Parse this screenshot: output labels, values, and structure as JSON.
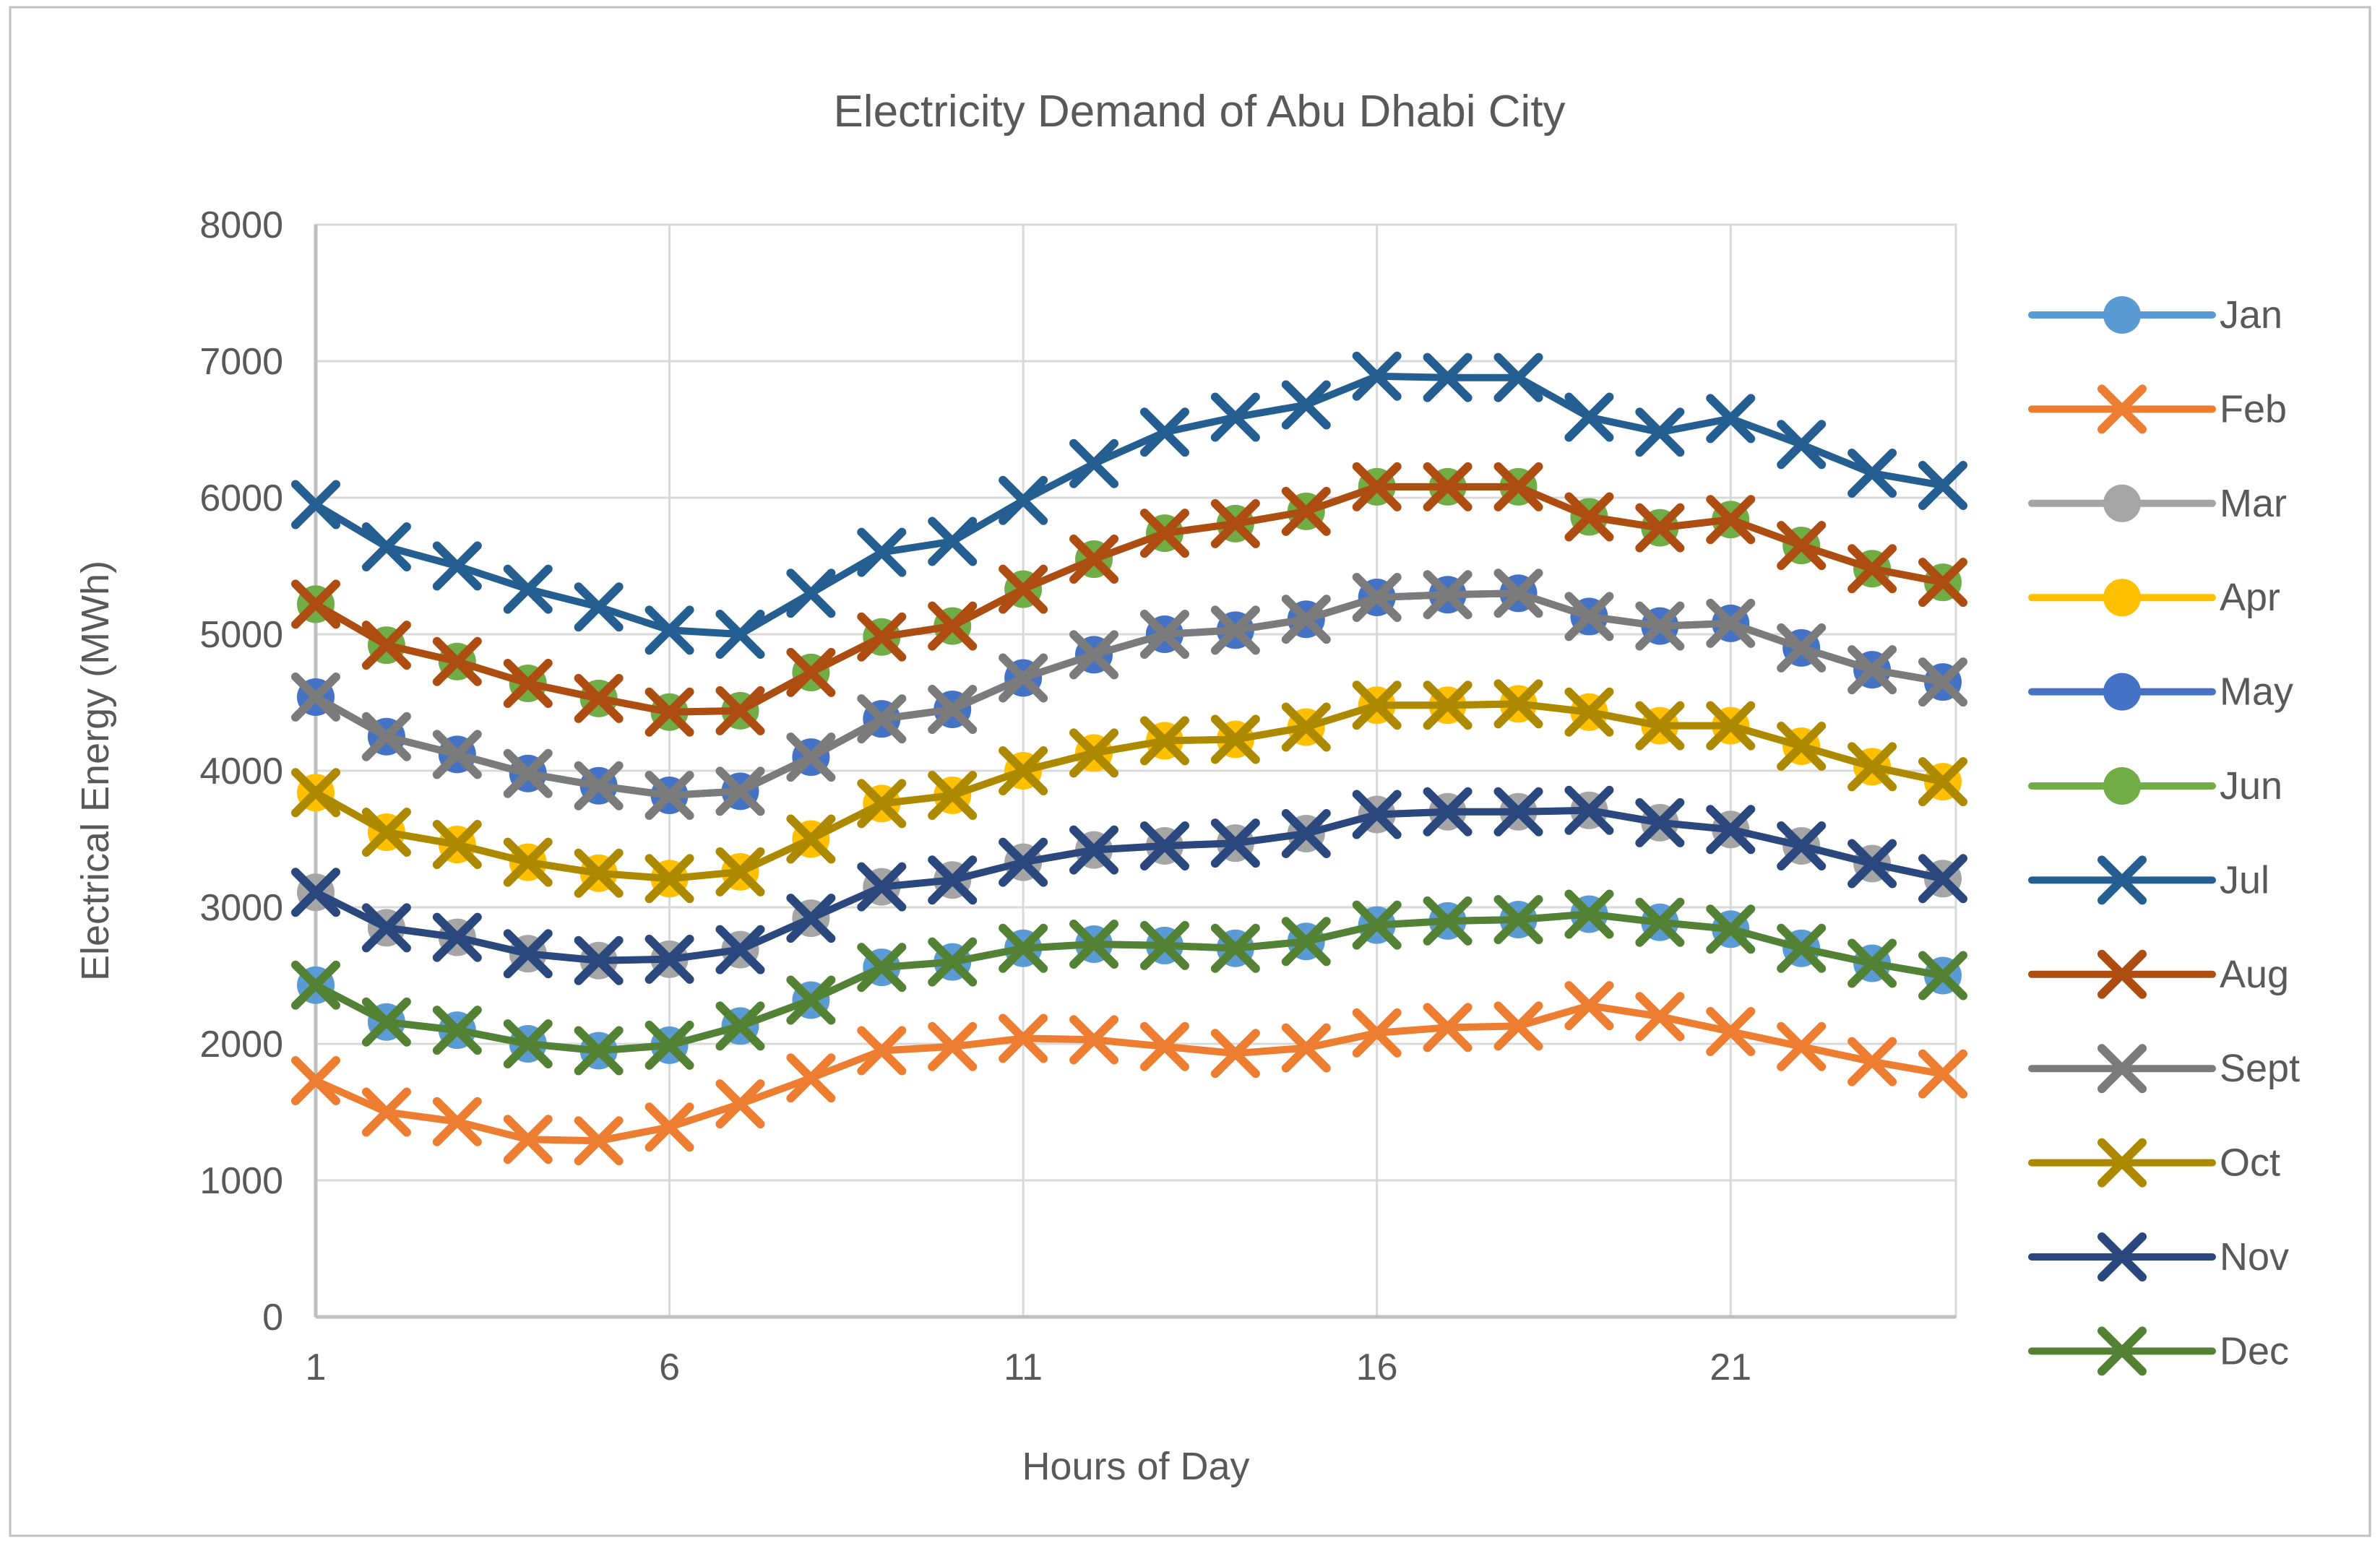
{
  "chart": {
    "title": "Electricity Demand of Abu Dhabi City",
    "x_axis_title": "Hours of Day",
    "y_axis_title": "Electrical Energy (MWh)",
    "text_color": "#595959",
    "gridline_color": "#D9D9D9",
    "axis_line_color": "#BFBFBF",
    "border_color": "#BFBFBF"
  },
  "chart_data": {
    "type": "line",
    "title": "Electricity Demand of Abu Dhabi City",
    "xlabel": "Hours of Day",
    "ylabel": "Electrical Energy (MWh)",
    "x": [
      1,
      2,
      3,
      4,
      5,
      6,
      7,
      8,
      9,
      10,
      11,
      12,
      13,
      14,
      15,
      16,
      17,
      18,
      19,
      20,
      21,
      22,
      23,
      24
    ],
    "x_tick_labels": [
      "1",
      "6",
      "11",
      "16",
      "21"
    ],
    "x_ticks_at": [
      1,
      6,
      11,
      16,
      21
    ],
    "ylim": [
      0,
      8000
    ],
    "y_step": 1000,
    "grid": true,
    "legend_position": "right",
    "series": [
      {
        "name": "Jan",
        "color": "#5B9BD5",
        "marker": "circle",
        "values": [
          2430,
          2160,
          2100,
          2000,
          1950,
          1990,
          2130,
          2320,
          2560,
          2600,
          2700,
          2730,
          2720,
          2700,
          2750,
          2870,
          2900,
          2910,
          2950,
          2890,
          2840,
          2700,
          2590,
          2500
        ]
      },
      {
        "name": "Feb",
        "color": "#ED7D31",
        "marker": "x",
        "values": [
          1730,
          1500,
          1430,
          1300,
          1290,
          1390,
          1560,
          1750,
          1950,
          1980,
          2040,
          2030,
          1980,
          1930,
          1970,
          2080,
          2120,
          2130,
          2280,
          2200,
          2090,
          1980,
          1870,
          1780
        ]
      },
      {
        "name": "Mar",
        "color": "#A5A5A5",
        "marker": "circle",
        "values": [
          3110,
          2850,
          2780,
          2660,
          2610,
          2620,
          2690,
          2920,
          3150,
          3200,
          3330,
          3420,
          3450,
          3470,
          3540,
          3680,
          3700,
          3700,
          3710,
          3620,
          3570,
          3450,
          3320,
          3210
        ]
      },
      {
        "name": "Apr",
        "color": "#FFC000",
        "marker": "circle",
        "values": [
          3840,
          3550,
          3460,
          3330,
          3250,
          3210,
          3260,
          3500,
          3760,
          3820,
          4000,
          4130,
          4220,
          4230,
          4320,
          4480,
          4480,
          4490,
          4430,
          4330,
          4330,
          4180,
          4030,
          3920
        ]
      },
      {
        "name": "May",
        "color": "#4472C4",
        "marker": "circle",
        "values": [
          4540,
          4250,
          4120,
          3980,
          3890,
          3820,
          3850,
          4100,
          4380,
          4450,
          4680,
          4850,
          5000,
          5030,
          5110,
          5270,
          5290,
          5300,
          5130,
          5060,
          5080,
          4900,
          4740,
          4650
        ]
      },
      {
        "name": "Jun",
        "color": "#70AD47",
        "marker": "circle",
        "values": [
          5220,
          4920,
          4800,
          4640,
          4530,
          4430,
          4440,
          4720,
          4980,
          5060,
          5330,
          5550,
          5740,
          5810,
          5900,
          6080,
          6080,
          6080,
          5860,
          5780,
          5840,
          5650,
          5480,
          5380
        ]
      },
      {
        "name": "Jul",
        "color": "#255E91",
        "marker": "x",
        "values": [
          5950,
          5640,
          5500,
          5330,
          5200,
          5030,
          5000,
          5300,
          5600,
          5680,
          5980,
          6250,
          6480,
          6590,
          6680,
          6890,
          6880,
          6880,
          6590,
          6480,
          6580,
          6390,
          6180,
          6090
        ]
      },
      {
        "name": "Aug",
        "color": "#AE4D12",
        "marker": "x",
        "values": [
          5220,
          4920,
          4800,
          4640,
          4530,
          4430,
          4440,
          4720,
          4980,
          5060,
          5330,
          5550,
          5740,
          5810,
          5900,
          6080,
          6080,
          6080,
          5860,
          5780,
          5840,
          5650,
          5480,
          5380
        ]
      },
      {
        "name": "Sept",
        "color": "#7B7B7B",
        "marker": "x",
        "values": [
          4540,
          4250,
          4120,
          3980,
          3890,
          3820,
          3850,
          4100,
          4380,
          4450,
          4680,
          4850,
          5000,
          5030,
          5110,
          5270,
          5290,
          5300,
          5130,
          5060,
          5080,
          4900,
          4740,
          4650
        ]
      },
      {
        "name": "Oct",
        "color": "#AD8900",
        "marker": "x",
        "values": [
          3840,
          3550,
          3460,
          3330,
          3250,
          3210,
          3260,
          3500,
          3760,
          3820,
          4000,
          4130,
          4220,
          4230,
          4320,
          4480,
          4480,
          4490,
          4430,
          4330,
          4330,
          4180,
          4030,
          3920
        ]
      },
      {
        "name": "Nov",
        "color": "#2A477E",
        "marker": "x",
        "values": [
          3110,
          2850,
          2780,
          2660,
          2610,
          2620,
          2690,
          2920,
          3150,
          3200,
          3330,
          3420,
          3450,
          3470,
          3540,
          3680,
          3700,
          3700,
          3710,
          3620,
          3570,
          3450,
          3320,
          3210
        ]
      },
      {
        "name": "Dec",
        "color": "#548235",
        "marker": "x",
        "values": [
          2430,
          2160,
          2100,
          2000,
          1950,
          1990,
          2130,
          2320,
          2560,
          2600,
          2700,
          2730,
          2720,
          2700,
          2750,
          2870,
          2900,
          2910,
          2950,
          2890,
          2840,
          2700,
          2590,
          2500
        ]
      }
    ]
  }
}
